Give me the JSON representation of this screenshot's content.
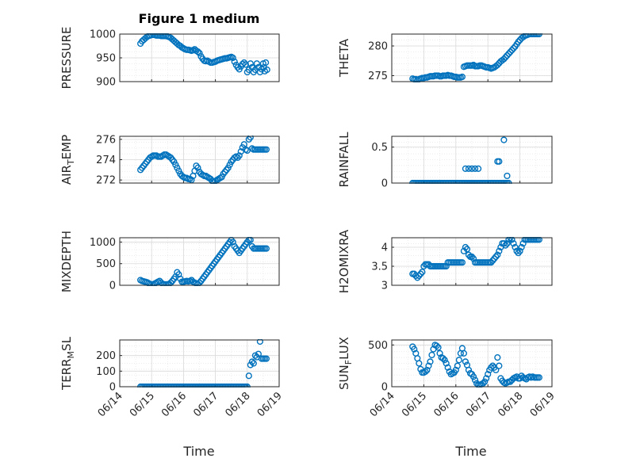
{
  "figure": {
    "title": "Figure 1 medium",
    "xlabel": "Time",
    "xticks": [
      "06/14",
      "06/15",
      "06/16",
      "06/17",
      "06/18",
      "06/19"
    ],
    "marker_color": "#0072bd"
  },
  "chart_data": [
    {
      "type": "scatter",
      "name": "pressure",
      "ylabel": "PRESSURE",
      "ylim": [
        900,
        1000
      ],
      "yticks": [
        900,
        950,
        1000
      ],
      "xlim": [
        "06/14",
        "06/19"
      ],
      "x": [
        0.65,
        0.7,
        0.75,
        0.8,
        0.85,
        0.9,
        0.95,
        1.0,
        1.05,
        1.1,
        1.15,
        1.2,
        1.25,
        1.3,
        1.35,
        1.4,
        1.45,
        1.5,
        1.55,
        1.6,
        1.65,
        1.7,
        1.75,
        1.8,
        1.85,
        1.9,
        1.95,
        2.0,
        2.05,
        2.1,
        2.15,
        2.2,
        2.25,
        2.3,
        2.35,
        2.4,
        2.45,
        2.5,
        2.55,
        2.6,
        2.65,
        2.7,
        2.75,
        2.8,
        2.85,
        2.9,
        2.95,
        3.0,
        3.05,
        3.1,
        3.15,
        3.2,
        3.25,
        3.3,
        3.35,
        3.4,
        3.45,
        3.5,
        3.55,
        3.6,
        3.65,
        3.7,
        3.75,
        3.8,
        3.85,
        3.9,
        3.95,
        4.0,
        4.05,
        4.1,
        4.15,
        4.2,
        4.25,
        4.3,
        4.35,
        4.4,
        4.45,
        4.5,
        4.52,
        4.55,
        4.58,
        4.62
      ],
      "y": [
        980,
        985,
        988,
        991,
        994,
        996,
        997,
        998,
        999,
        998,
        997,
        997,
        997,
        996,
        996,
        996,
        996,
        995,
        994,
        992,
        989,
        986,
        983,
        980,
        977,
        975,
        972,
        970,
        968,
        967,
        967,
        966,
        965,
        966,
        968,
        965,
        963,
        960,
        953,
        948,
        944,
        943,
        944,
        942,
        940,
        940,
        941,
        942,
        944,
        945,
        946,
        947,
        948,
        949,
        949,
        950,
        951,
        952,
        950,
        942,
        935,
        930,
        926,
        932,
        937,
        940,
        936,
        920,
        925,
        938,
        930,
        920,
        925,
        938,
        930,
        920,
        926,
        938,
        930,
        922,
        940,
        925
      ]
    },
    {
      "type": "scatter",
      "name": "theta",
      "ylabel": "THETA",
      "ylim": [
        274,
        282
      ],
      "yticks": [
        275,
        280
      ],
      "xlim": [
        "06/14",
        "06/19"
      ],
      "x": [
        0.65,
        0.7,
        0.75,
        0.8,
        0.85,
        0.9,
        0.95,
        1.0,
        1.05,
        1.1,
        1.15,
        1.2,
        1.25,
        1.3,
        1.35,
        1.4,
        1.45,
        1.5,
        1.55,
        1.6,
        1.65,
        1.7,
        1.75,
        1.8,
        1.85,
        1.9,
        1.95,
        2.0,
        2.05,
        2.1,
        2.15,
        2.2,
        2.25,
        2.3,
        2.35,
        2.4,
        2.45,
        2.5,
        2.55,
        2.6,
        2.65,
        2.7,
        2.75,
        2.8,
        2.85,
        2.9,
        2.95,
        3.0,
        3.05,
        3.1,
        3.15,
        3.2,
        3.25,
        3.3,
        3.35,
        3.4,
        3.45,
        3.5,
        3.55,
        3.6,
        3.65,
        3.7,
        3.75,
        3.8,
        3.85,
        3.9,
        3.95,
        4.0,
        4.05,
        4.1,
        4.15,
        4.2,
        4.25,
        4.3,
        4.35,
        4.4,
        4.45,
        4.5,
        4.55,
        4.6
      ],
      "y": [
        274.5,
        274.4,
        274.4,
        274.3,
        274.4,
        274.5,
        274.6,
        274.6,
        274.7,
        274.7,
        274.8,
        274.9,
        274.9,
        274.9,
        275.0,
        275.0,
        275.0,
        274.9,
        274.9,
        275.0,
        275.0,
        275.0,
        275.1,
        275.0,
        275.0,
        274.9,
        274.8,
        274.8,
        274.7,
        274.7,
        274.7,
        274.8,
        276.5,
        276.6,
        276.7,
        276.7,
        276.7,
        276.7,
        276.8,
        276.6,
        276.6,
        276.6,
        276.7,
        276.7,
        276.6,
        276.5,
        276.4,
        276.4,
        276.3,
        276.2,
        276.3,
        276.4,
        276.6,
        276.8,
        277.1,
        277.4,
        277.6,
        277.8,
        278.1,
        278.4,
        278.7,
        279.0,
        279.3,
        279.6,
        279.9,
        280.3,
        280.7,
        281.0,
        281.3,
        281.5,
        281.7,
        281.8,
        281.9,
        282.0,
        282.0,
        282.0,
        282.0,
        282.0,
        282.0,
        282.0
      ]
    },
    {
      "type": "scatter",
      "name": "air_temp",
      "ylabel": "AIR_TEMP",
      "ylim": [
        271.7,
        276.3
      ],
      "yticks": [
        272,
        274,
        276
      ],
      "xlim": [
        "06/14",
        "06/19"
      ],
      "x": [
        0.65,
        0.7,
        0.75,
        0.8,
        0.85,
        0.9,
        0.95,
        1.0,
        1.05,
        1.1,
        1.15,
        1.2,
        1.25,
        1.3,
        1.35,
        1.4,
        1.45,
        1.5,
        1.55,
        1.6,
        1.65,
        1.7,
        1.75,
        1.8,
        1.85,
        1.9,
        1.95,
        2.0,
        2.05,
        2.1,
        2.15,
        2.2,
        2.25,
        2.3,
        2.35,
        2.4,
        2.45,
        2.5,
        2.55,
        2.6,
        2.65,
        2.7,
        2.75,
        2.8,
        2.85,
        2.9,
        2.95,
        3.0,
        3.05,
        3.1,
        3.15,
        3.2,
        3.25,
        3.3,
        3.35,
        3.4,
        3.45,
        3.5,
        3.55,
        3.6,
        3.65,
        3.7,
        3.75,
        3.8,
        3.85,
        3.9,
        3.95,
        4.0,
        4.05,
        4.1,
        4.15,
        4.2,
        4.25,
        4.3,
        4.35,
        4.4,
        4.45,
        4.5,
        4.55,
        4.6
      ],
      "y": [
        273.0,
        273.2,
        273.4,
        273.6,
        273.8,
        274.0,
        274.2,
        274.3,
        274.4,
        274.4,
        274.4,
        274.3,
        274.3,
        274.3,
        274.4,
        274.5,
        274.5,
        274.4,
        274.3,
        274.2,
        274.0,
        273.8,
        273.5,
        273.2,
        272.9,
        272.6,
        272.4,
        272.3,
        272.2,
        272.2,
        272.1,
        272.1,
        272.0,
        272.4,
        272.9,
        273.4,
        273.2,
        272.8,
        272.6,
        272.5,
        272.4,
        272.4,
        272.3,
        272.2,
        272.1,
        271.9,
        271.8,
        271.9,
        272.0,
        272.1,
        272.2,
        272.3,
        272.6,
        272.8,
        273.0,
        273.2,
        273.5,
        273.8,
        274.0,
        274.2,
        274.3,
        274.2,
        274.4,
        274.8,
        275.2,
        275.5,
        275.0,
        274.9,
        276.0,
        276.2,
        275.1,
        275.0,
        275.0,
        275.0,
        275.0,
        275.0,
        275.0,
        275.0,
        275.0,
        275.0
      ]
    },
    {
      "type": "scatter",
      "name": "rainfall",
      "ylabel": "RAINFALL",
      "ylim": [
        0,
        0.65
      ],
      "yticks": [
        0,
        0.5
      ],
      "xlim": [
        "06/14",
        "06/19"
      ],
      "x": [
        0.65,
        0.7,
        0.75,
        0.8,
        0.85,
        0.9,
        0.95,
        1.0,
        1.05,
        1.1,
        1.15,
        1.2,
        1.25,
        1.3,
        1.35,
        1.4,
        1.45,
        1.5,
        1.55,
        1.6,
        1.65,
        1.7,
        1.75,
        1.8,
        1.85,
        1.9,
        1.95,
        2.0,
        2.05,
        2.1,
        2.15,
        2.2,
        2.25,
        2.3,
        2.35,
        2.4,
        2.45,
        2.5,
        2.55,
        2.6,
        2.65,
        2.7,
        2.75,
        2.8,
        2.85,
        2.9,
        2.95,
        3.0,
        3.05,
        3.1,
        3.15,
        3.2,
        3.25,
        3.3,
        3.35,
        3.4,
        3.45,
        3.5,
        3.55,
        3.6,
        3.65,
        2.3,
        2.4,
        2.5,
        2.6,
        2.7,
        3.3,
        3.35,
        3.5,
        3.6
      ],
      "y": [
        0,
        0,
        0,
        0,
        0,
        0,
        0,
        0,
        0,
        0,
        0,
        0,
        0,
        0,
        0,
        0,
        0,
        0,
        0,
        0,
        0,
        0,
        0,
        0,
        0,
        0,
        0,
        0,
        0,
        0,
        0,
        0,
        0,
        0,
        0,
        0,
        0,
        0,
        0,
        0,
        0,
        0,
        0,
        0,
        0,
        0,
        0,
        0,
        0,
        0,
        0,
        0,
        0,
        0,
        0,
        0,
        0,
        0,
        0,
        0,
        0,
        0.2,
        0.2,
        0.2,
        0.2,
        0.2,
        0.3,
        0.3,
        0.6,
        0.1
      ]
    },
    {
      "type": "scatter",
      "name": "mixdepth",
      "ylabel": "MIXDEPTH",
      "ylim": [
        0,
        1100
      ],
      "yticks": [
        0,
        500,
        1000
      ],
      "xlim": [
        "06/14",
        "06/19"
      ],
      "x": [
        0.65,
        0.7,
        0.75,
        0.8,
        0.85,
        0.9,
        0.95,
        1.0,
        1.05,
        1.1,
        1.15,
        1.2,
        1.25,
        1.3,
        1.35,
        1.4,
        1.45,
        1.5,
        1.55,
        1.6,
        1.65,
        1.7,
        1.75,
        1.8,
        1.85,
        1.9,
        1.95,
        2.0,
        2.05,
        2.1,
        2.15,
        2.2,
        2.25,
        2.3,
        2.35,
        2.4,
        2.45,
        2.5,
        2.55,
        2.6,
        2.65,
        2.7,
        2.75,
        2.8,
        2.85,
        2.9,
        2.95,
        3.0,
        3.05,
        3.1,
        3.15,
        3.2,
        3.25,
        3.3,
        3.35,
        3.4,
        3.45,
        3.5,
        3.55,
        3.6,
        3.65,
        3.7,
        3.75,
        3.8,
        3.85,
        3.9,
        3.95,
        4.0,
        4.05,
        4.1,
        4.15,
        4.2,
        4.25,
        4.3,
        4.35,
        4.4,
        4.45,
        4.5,
        4.55,
        4.6
      ],
      "y": [
        120,
        100,
        90,
        80,
        70,
        50,
        30,
        20,
        20,
        40,
        60,
        80,
        100,
        60,
        30,
        20,
        20,
        20,
        30,
        60,
        100,
        150,
        200,
        300,
        250,
        150,
        80,
        80,
        90,
        100,
        90,
        100,
        120,
        80,
        60,
        40,
        30,
        60,
        100,
        150,
        200,
        250,
        300,
        350,
        400,
        450,
        500,
        550,
        600,
        650,
        700,
        750,
        800,
        850,
        900,
        950,
        1000,
        1050,
        1000,
        900,
        850,
        800,
        750,
        800,
        850,
        900,
        950,
        1000,
        1050,
        1050,
        900,
        850,
        850,
        850,
        850,
        850,
        850,
        850,
        850,
        850
      ]
    },
    {
      "type": "scatter",
      "name": "h2omixra",
      "ylabel": "H2OMIXRA",
      "ylim": [
        3,
        4.25
      ],
      "yticks": [
        3,
        3.5,
        4
      ],
      "xlim": [
        "06/14",
        "06/19"
      ],
      "x": [
        0.65,
        0.7,
        0.75,
        0.8,
        0.85,
        0.9,
        0.95,
        1.0,
        1.05,
        1.1,
        1.15,
        1.2,
        1.25,
        1.3,
        1.35,
        1.4,
        1.45,
        1.5,
        1.55,
        1.6,
        1.65,
        1.7,
        1.75,
        1.8,
        1.85,
        1.9,
        1.95,
        2.0,
        2.05,
        2.1,
        2.15,
        2.2,
        2.25,
        2.3,
        2.35,
        2.4,
        2.45,
        2.5,
        2.55,
        2.6,
        2.65,
        2.7,
        2.75,
        2.8,
        2.85,
        2.9,
        2.95,
        3.0,
        3.05,
        3.1,
        3.15,
        3.2,
        3.25,
        3.3,
        3.35,
        3.4,
        3.45,
        3.5,
        3.55,
        3.6,
        3.65,
        3.7,
        3.75,
        3.8,
        3.85,
        3.9,
        3.95,
        4.0,
        4.05,
        4.1,
        4.15,
        4.2,
        4.25,
        4.3,
        4.35,
        4.4,
        4.45,
        4.5,
        4.55,
        4.6
      ],
      "y": [
        3.3,
        3.3,
        3.25,
        3.2,
        3.25,
        3.3,
        3.35,
        3.5,
        3.55,
        3.55,
        3.55,
        3.5,
        3.5,
        3.5,
        3.5,
        3.5,
        3.5,
        3.5,
        3.5,
        3.5,
        3.5,
        3.5,
        3.6,
        3.6,
        3.6,
        3.6,
        3.6,
        3.6,
        3.6,
        3.6,
        3.6,
        3.6,
        3.9,
        4.0,
        3.95,
        3.8,
        3.75,
        3.75,
        3.7,
        3.6,
        3.6,
        3.6,
        3.6,
        3.6,
        3.6,
        3.6,
        3.6,
        3.6,
        3.6,
        3.6,
        3.65,
        3.7,
        3.75,
        3.8,
        3.9,
        4.0,
        4.1,
        4.1,
        4.05,
        4.1,
        4.2,
        4.25,
        4.2,
        4.1,
        4.0,
        3.9,
        3.85,
        3.9,
        4.0,
        4.1,
        4.2,
        4.2,
        4.2,
        4.2,
        4.2,
        4.2,
        4.2,
        4.2,
        4.2,
        4.2
      ]
    },
    {
      "type": "scatter",
      "name": "terr_msl",
      "ylabel": "TERR_MSL",
      "ylim": [
        0,
        300
      ],
      "yticks": [
        0,
        100,
        200
      ],
      "xlim": [
        "06/14",
        "06/19"
      ],
      "x": [
        0.65,
        0.7,
        0.75,
        0.8,
        0.85,
        0.9,
        0.95,
        1.0,
        1.05,
        1.1,
        1.15,
        1.2,
        1.25,
        1.3,
        1.35,
        1.4,
        1.45,
        1.5,
        1.55,
        1.6,
        1.65,
        1.7,
        1.75,
        1.8,
        1.85,
        1.9,
        1.95,
        2.0,
        2.05,
        2.1,
        2.15,
        2.2,
        2.25,
        2.3,
        2.35,
        2.4,
        2.45,
        2.5,
        2.55,
        2.6,
        2.65,
        2.7,
        2.75,
        2.8,
        2.85,
        2.9,
        2.95,
        3.0,
        3.05,
        3.1,
        3.15,
        3.2,
        3.25,
        3.3,
        3.35,
        3.4,
        3.45,
        3.5,
        3.55,
        3.6,
        3.65,
        3.7,
        3.75,
        3.8,
        3.85,
        3.9,
        3.95,
        4.0,
        4.05,
        4.1,
        4.15,
        4.2,
        4.25,
        4.3,
        4.35,
        4.4,
        4.45,
        4.5,
        4.55,
        4.6
      ],
      "y": [
        0,
        0,
        0,
        0,
        0,
        0,
        0,
        0,
        0,
        0,
        0,
        0,
        0,
        0,
        0,
        0,
        0,
        0,
        0,
        0,
        0,
        0,
        0,
        0,
        0,
        0,
        0,
        0,
        0,
        0,
        0,
        0,
        0,
        0,
        0,
        0,
        0,
        0,
        0,
        0,
        0,
        0,
        0,
        0,
        0,
        0,
        0,
        0,
        0,
        0,
        0,
        0,
        0,
        0,
        0,
        0,
        0,
        0,
        0,
        0,
        0,
        0,
        0,
        0,
        0,
        0,
        0,
        0,
        70,
        140,
        160,
        150,
        200,
        190,
        210,
        290,
        180,
        180,
        180,
        180
      ]
    },
    {
      "type": "scatter",
      "name": "sun_flux",
      "ylabel": "SUN_FLUX",
      "ylim": [
        0,
        560
      ],
      "yticks": [
        0,
        500
      ],
      "xlim": [
        "06/14",
        "06/19"
      ],
      "x": [
        0.65,
        0.7,
        0.75,
        0.8,
        0.85,
        0.9,
        0.95,
        1.0,
        1.05,
        1.1,
        1.15,
        1.2,
        1.25,
        1.3,
        1.35,
        1.4,
        1.45,
        1.5,
        1.55,
        1.6,
        1.65,
        1.7,
        1.75,
        1.8,
        1.85,
        1.9,
        1.95,
        2.0,
        2.05,
        2.1,
        2.15,
        2.2,
        2.25,
        2.3,
        2.35,
        2.4,
        2.45,
        2.5,
        2.55,
        2.6,
        2.65,
        2.7,
        2.75,
        2.8,
        2.85,
        2.9,
        2.95,
        3.0,
        3.05,
        3.1,
        3.15,
        3.2,
        3.25,
        3.3,
        3.35,
        3.4,
        3.45,
        3.5,
        3.55,
        3.6,
        3.65,
        3.7,
        3.75,
        3.8,
        3.85,
        3.9,
        3.95,
        4.0,
        4.05,
        4.1,
        4.15,
        4.2,
        4.25,
        4.3,
        4.35,
        4.4,
        4.45,
        4.5,
        4.55,
        4.6
      ],
      "y": [
        480,
        450,
        400,
        340,
        280,
        210,
        170,
        170,
        180,
        200,
        250,
        300,
        380,
        450,
        500,
        490,
        470,
        400,
        350,
        340,
        320,
        280,
        230,
        180,
        150,
        160,
        170,
        200,
        250,
        320,
        400,
        460,
        400,
        300,
        260,
        200,
        160,
        150,
        120,
        80,
        40,
        20,
        20,
        30,
        40,
        60,
        100,
        150,
        200,
        230,
        250,
        230,
        200,
        350,
        250,
        100,
        70,
        50,
        40,
        50,
        60,
        60,
        80,
        100,
        110,
        120,
        100,
        100,
        130,
        110,
        100,
        90,
        110,
        120,
        110,
        120,
        110,
        110,
        110,
        110
      ]
    }
  ]
}
